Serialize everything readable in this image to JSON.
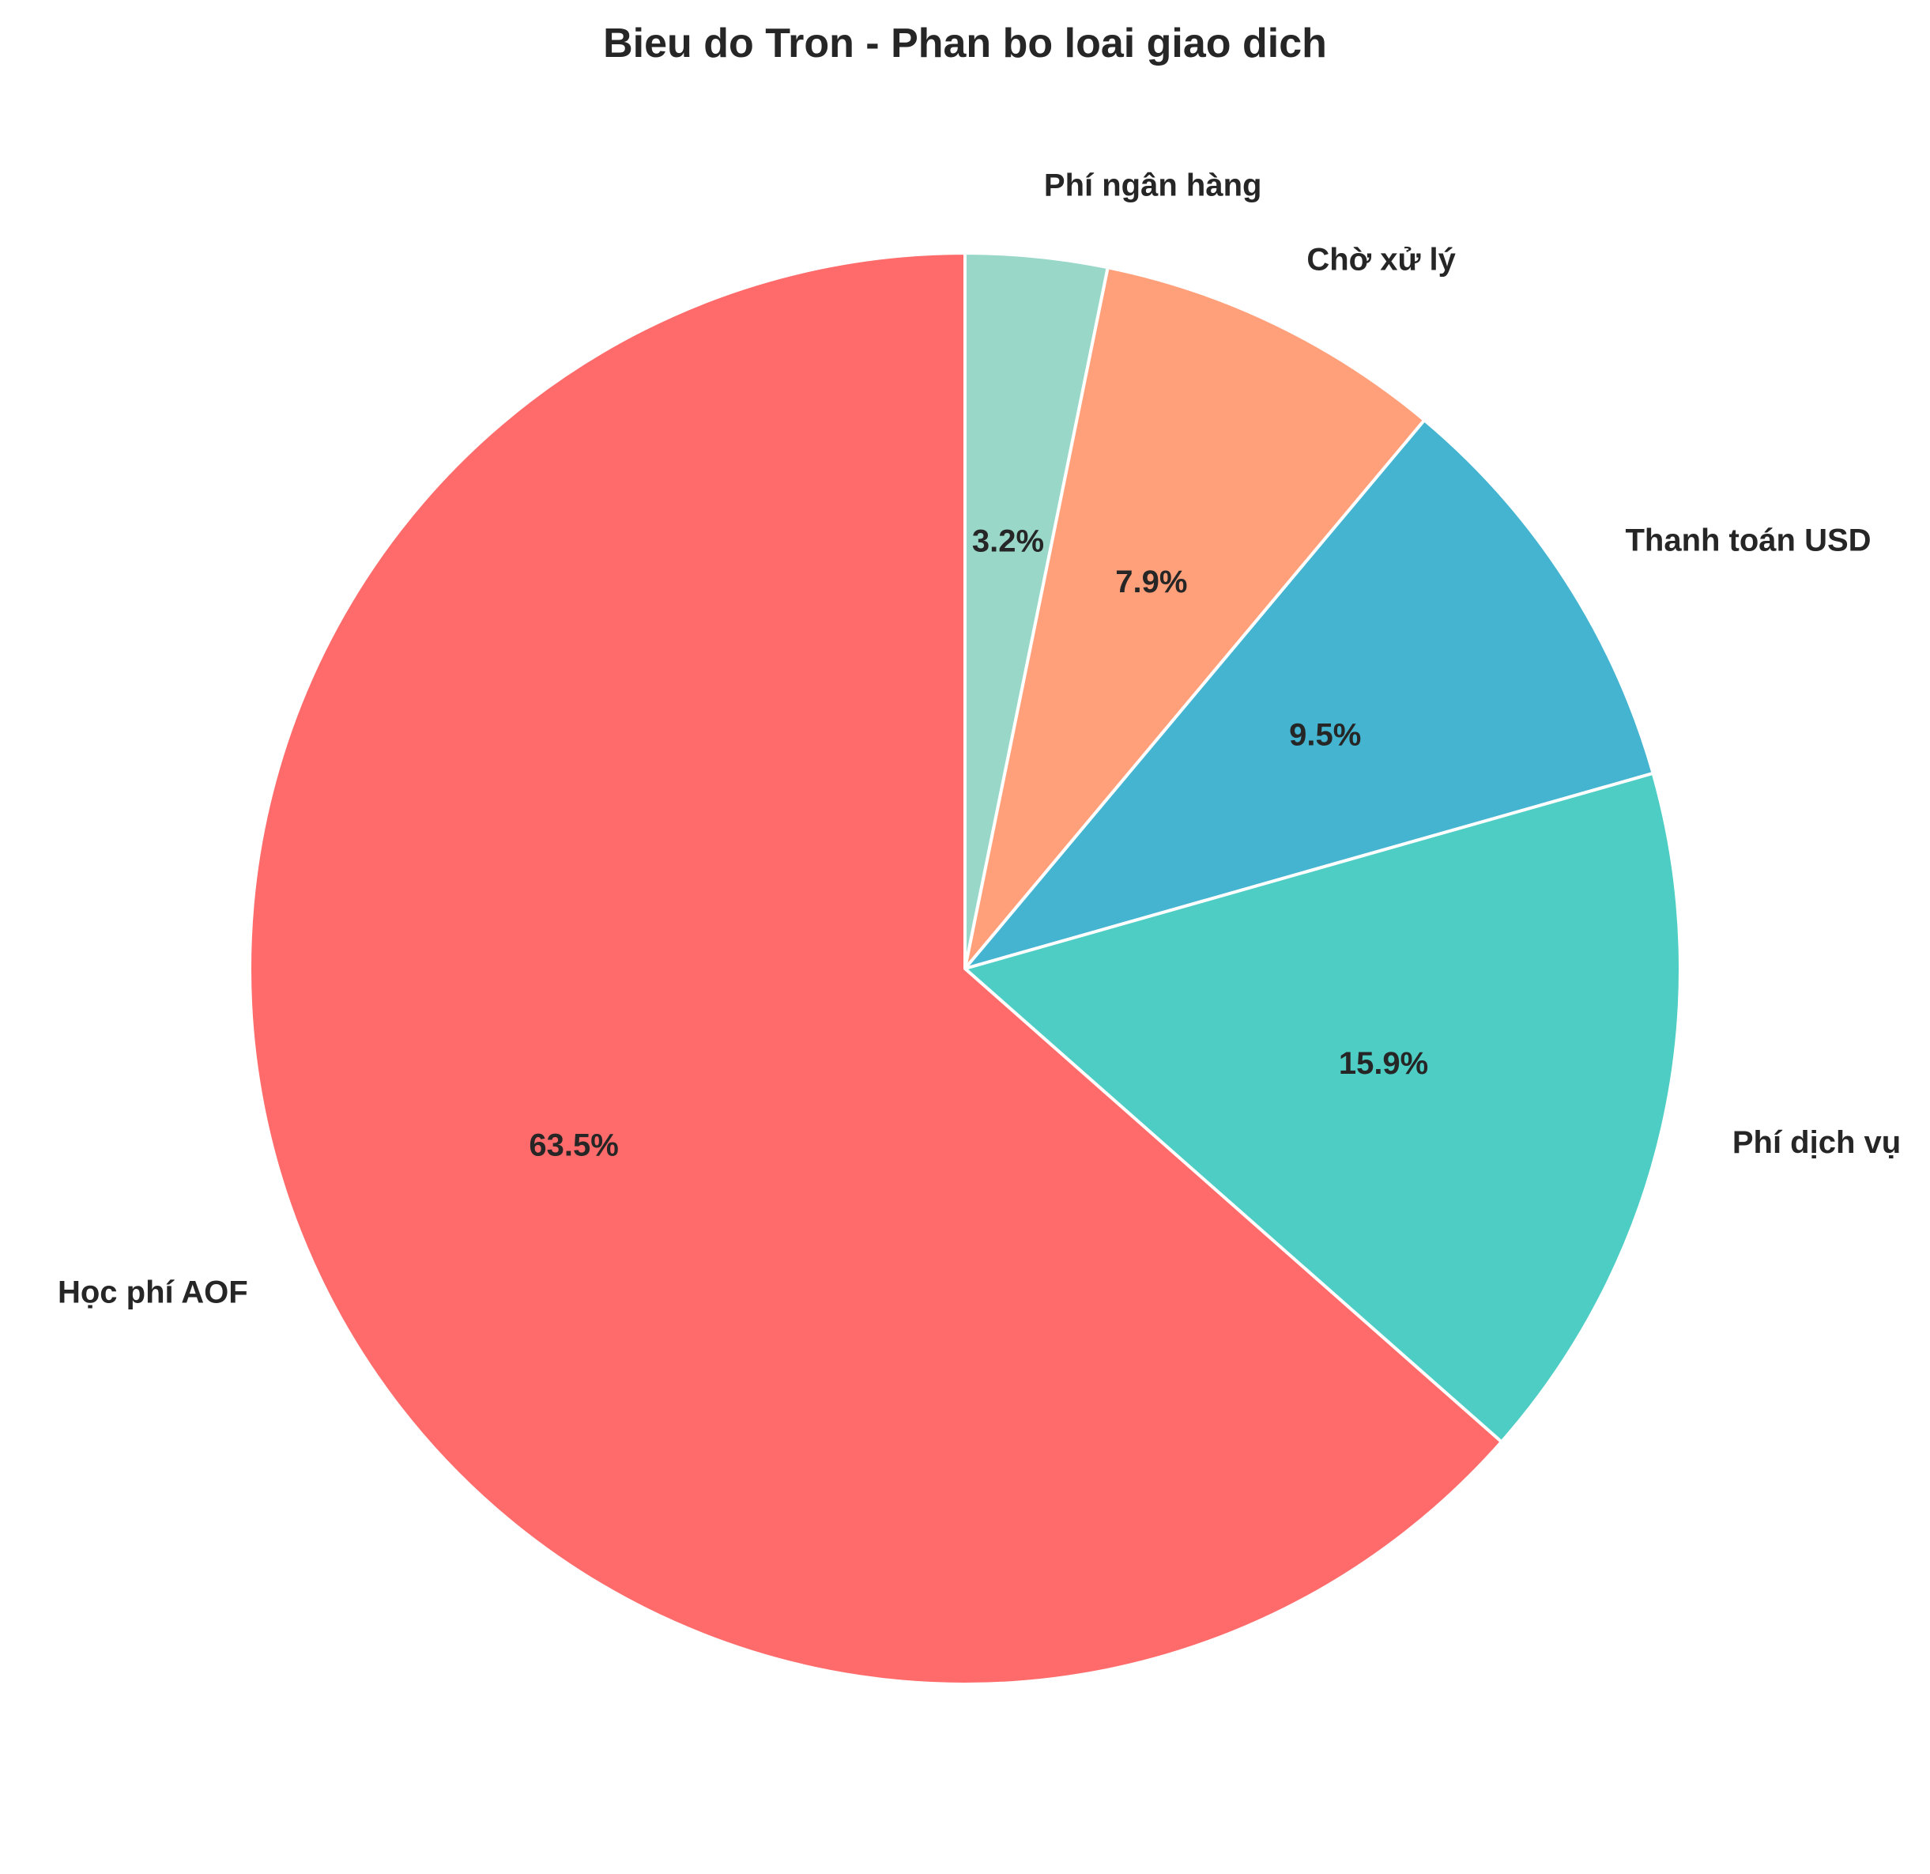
{
  "chart_data": {
    "type": "pie",
    "title": "Bieu do Tron - Phan bo loai giao dich",
    "start_angle_deg": 90,
    "direction": "clockwise",
    "slices": [
      {
        "label": "Phí ngân hàng",
        "value": 3.2,
        "pct_label": "3.2%",
        "color": "#99D8C9"
      },
      {
        "label": "Chờ xử lý",
        "value": 7.9,
        "pct_label": "7.9%",
        "color": "#FFA07A"
      },
      {
        "label": "Thanh toán USD",
        "value": 9.5,
        "pct_label": "9.5%",
        "color": "#45B4D0"
      },
      {
        "label": "Phí dịch vụ",
        "value": 15.9,
        "pct_label": "15.9%",
        "color": "#4ECDC4"
      },
      {
        "label": "Học phí AOF",
        "value": 63.5,
        "pct_label": "63.5%",
        "color": "#FF6B6B"
      }
    ]
  }
}
